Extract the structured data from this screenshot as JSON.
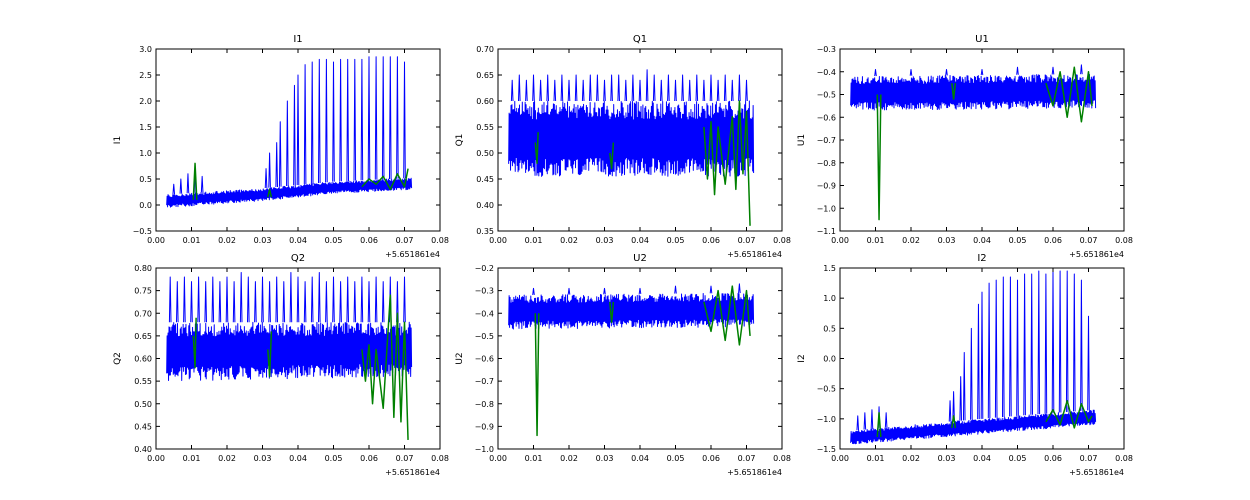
{
  "chart_data": [
    {
      "type": "line",
      "title": "I1",
      "ylabel": "I1",
      "xlim": [
        0.0,
        0.08
      ],
      "ylim": [
        -0.5,
        3.0
      ],
      "x_offset_label": "+5.651861e4",
      "xticks": [
        "0.00",
        "0.01",
        "0.02",
        "0.03",
        "0.04",
        "0.05",
        "0.06",
        "0.07",
        "0.08"
      ],
      "yticks": [
        "−0.5",
        "0.0",
        "0.5",
        "1.0",
        "1.5",
        "2.0",
        "2.5",
        "3.0"
      ],
      "blue_band": {
        "x": [
          0.003,
          0.03,
          0.05,
          0.072
        ],
        "low": [
          -0.05,
          0.08,
          0.22,
          0.3
        ],
        "high": [
          0.2,
          0.32,
          0.45,
          0.52
        ]
      },
      "blue_spikes": [
        {
          "x": 0.005,
          "y": 0.4
        },
        {
          "x": 0.007,
          "y": 0.5
        },
        {
          "x": 0.009,
          "y": 0.6
        },
        {
          "x": 0.011,
          "y": 0.7
        },
        {
          "x": 0.013,
          "y": 0.55
        },
        {
          "x": 0.031,
          "y": 0.7
        },
        {
          "x": 0.032,
          "y": 1.0
        },
        {
          "x": 0.034,
          "y": 1.2
        },
        {
          "x": 0.035,
          "y": 1.6
        },
        {
          "x": 0.037,
          "y": 2.0
        },
        {
          "x": 0.039,
          "y": 2.3
        },
        {
          "x": 0.04,
          "y": 2.5
        },
        {
          "x": 0.042,
          "y": 2.7
        },
        {
          "x": 0.044,
          "y": 2.75
        },
        {
          "x": 0.046,
          "y": 2.8
        },
        {
          "x": 0.048,
          "y": 2.8
        },
        {
          "x": 0.05,
          "y": 2.75
        },
        {
          "x": 0.052,
          "y": 2.8
        },
        {
          "x": 0.054,
          "y": 2.8
        },
        {
          "x": 0.056,
          "y": 2.8
        },
        {
          "x": 0.058,
          "y": 2.8
        },
        {
          "x": 0.06,
          "y": 2.85
        },
        {
          "x": 0.062,
          "y": 2.85
        },
        {
          "x": 0.064,
          "y": 2.85
        },
        {
          "x": 0.066,
          "y": 2.85
        },
        {
          "x": 0.068,
          "y": 2.85
        },
        {
          "x": 0.07,
          "y": 2.75
        }
      ],
      "green_line": [
        {
          "x": 0.0105,
          "y": 0.1
        },
        {
          "x": 0.011,
          "y": 0.8
        },
        {
          "x": 0.0115,
          "y": 0.1
        },
        {
          "x": 0.0315,
          "y": 0.15
        },
        {
          "x": 0.032,
          "y": 0.3
        },
        {
          "x": 0.0325,
          "y": 0.15
        },
        {
          "x": 0.058,
          "y": 0.35
        },
        {
          "x": 0.06,
          "y": 0.5
        },
        {
          "x": 0.062,
          "y": 0.4
        },
        {
          "x": 0.064,
          "y": 0.55
        },
        {
          "x": 0.066,
          "y": 0.3
        },
        {
          "x": 0.068,
          "y": 0.6
        },
        {
          "x": 0.07,
          "y": 0.35
        },
        {
          "x": 0.071,
          "y": 0.7
        }
      ]
    },
    {
      "type": "line",
      "title": "Q1",
      "ylabel": "Q1",
      "xlim": [
        0.0,
        0.08
      ],
      "ylim": [
        0.35,
        0.7
      ],
      "x_offset_label": "+5.651861e4",
      "xticks": [
        "0.00",
        "0.01",
        "0.02",
        "0.03",
        "0.04",
        "0.05",
        "0.06",
        "0.07",
        "0.08"
      ],
      "yticks": [
        "0.35",
        "0.40",
        "0.45",
        "0.50",
        "0.55",
        "0.60",
        "0.65",
        "0.70"
      ],
      "blue_band": {
        "x": [
          0.003,
          0.072
        ],
        "low": [
          0.455,
          0.455
        ],
        "high": [
          0.6,
          0.6
        ]
      },
      "blue_spikes": [
        {
          "x": 0.004,
          "y": 0.64
        },
        {
          "x": 0.006,
          "y": 0.65
        },
        {
          "x": 0.008,
          "y": 0.64
        },
        {
          "x": 0.01,
          "y": 0.65
        },
        {
          "x": 0.012,
          "y": 0.64
        },
        {
          "x": 0.014,
          "y": 0.65
        },
        {
          "x": 0.016,
          "y": 0.64
        },
        {
          "x": 0.018,
          "y": 0.65
        },
        {
          "x": 0.02,
          "y": 0.64
        },
        {
          "x": 0.022,
          "y": 0.65
        },
        {
          "x": 0.024,
          "y": 0.64
        },
        {
          "x": 0.026,
          "y": 0.65
        },
        {
          "x": 0.028,
          "y": 0.65
        },
        {
          "x": 0.03,
          "y": 0.64
        },
        {
          "x": 0.032,
          "y": 0.65
        },
        {
          "x": 0.034,
          "y": 0.65
        },
        {
          "x": 0.036,
          "y": 0.64
        },
        {
          "x": 0.038,
          "y": 0.65
        },
        {
          "x": 0.04,
          "y": 0.64
        },
        {
          "x": 0.042,
          "y": 0.66
        },
        {
          "x": 0.044,
          "y": 0.65
        },
        {
          "x": 0.046,
          "y": 0.64
        },
        {
          "x": 0.048,
          "y": 0.65
        },
        {
          "x": 0.05,
          "y": 0.64
        },
        {
          "x": 0.052,
          "y": 0.65
        },
        {
          "x": 0.054,
          "y": 0.64
        },
        {
          "x": 0.056,
          "y": 0.65
        },
        {
          "x": 0.058,
          "y": 0.64
        },
        {
          "x": 0.06,
          "y": 0.65
        },
        {
          "x": 0.062,
          "y": 0.64
        },
        {
          "x": 0.064,
          "y": 0.65
        },
        {
          "x": 0.066,
          "y": 0.64
        },
        {
          "x": 0.068,
          "y": 0.65
        },
        {
          "x": 0.07,
          "y": 0.64
        }
      ],
      "green_line": [
        {
          "x": 0.0105,
          "y": 0.52
        },
        {
          "x": 0.011,
          "y": 0.48
        },
        {
          "x": 0.0113,
          "y": 0.54
        },
        {
          "x": 0.0315,
          "y": 0.5
        },
        {
          "x": 0.032,
          "y": 0.47
        },
        {
          "x": 0.0325,
          "y": 0.52
        },
        {
          "x": 0.058,
          "y": 0.55
        },
        {
          "x": 0.059,
          "y": 0.45
        },
        {
          "x": 0.06,
          "y": 0.56
        },
        {
          "x": 0.061,
          "y": 0.42
        },
        {
          "x": 0.062,
          "y": 0.55
        },
        {
          "x": 0.064,
          "y": 0.44
        },
        {
          "x": 0.066,
          "y": 0.57
        },
        {
          "x": 0.067,
          "y": 0.43
        },
        {
          "x": 0.068,
          "y": 0.6
        },
        {
          "x": 0.069,
          "y": 0.46
        },
        {
          "x": 0.07,
          "y": 0.58
        },
        {
          "x": 0.071,
          "y": 0.36
        }
      ]
    },
    {
      "type": "line",
      "title": "U1",
      "ylabel": "U1",
      "xlim": [
        0.0,
        0.08
      ],
      "ylim": [
        -1.1,
        -0.3
      ],
      "x_offset_label": "+5.651861e4",
      "xticks": [
        "0.00",
        "0.01",
        "0.02",
        "0.03",
        "0.04",
        "0.05",
        "0.06",
        "0.07",
        "0.08"
      ],
      "yticks": [
        "−1.1",
        "−1.0",
        "−0.9",
        "−0.8",
        "−0.7",
        "−0.6",
        "−0.5",
        "−0.4",
        "−0.3"
      ],
      "blue_band": {
        "x": [
          0.003,
          0.072
        ],
        "low": [
          -0.57,
          -0.56
        ],
        "high": [
          -0.42,
          -0.41
        ]
      },
      "blue_spikes": [
        {
          "x": 0.01,
          "y": -0.39
        },
        {
          "x": 0.02,
          "y": -0.39
        },
        {
          "x": 0.03,
          "y": -0.39
        },
        {
          "x": 0.04,
          "y": -0.39
        },
        {
          "x": 0.05,
          "y": -0.38
        },
        {
          "x": 0.06,
          "y": -0.38
        },
        {
          "x": 0.068,
          "y": -0.37
        }
      ],
      "green_line": [
        {
          "x": 0.0105,
          "y": -0.5
        },
        {
          "x": 0.011,
          "y": -1.05
        },
        {
          "x": 0.0115,
          "y": -0.5
        },
        {
          "x": 0.0315,
          "y": -0.45
        },
        {
          "x": 0.032,
          "y": -0.52
        },
        {
          "x": 0.0325,
          "y": -0.45
        },
        {
          "x": 0.058,
          "y": -0.45
        },
        {
          "x": 0.06,
          "y": -0.55
        },
        {
          "x": 0.062,
          "y": -0.4
        },
        {
          "x": 0.064,
          "y": -0.6
        },
        {
          "x": 0.066,
          "y": -0.38
        },
        {
          "x": 0.068,
          "y": -0.62
        },
        {
          "x": 0.07,
          "y": -0.4
        },
        {
          "x": 0.071,
          "y": -0.55
        }
      ]
    },
    {
      "type": "line",
      "title": "Q2",
      "ylabel": "Q2",
      "xlim": [
        0.0,
        0.08
      ],
      "ylim": [
        0.4,
        0.8
      ],
      "x_offset_label": "+5.651861e4",
      "xticks": [
        "0.00",
        "0.01",
        "0.02",
        "0.03",
        "0.04",
        "0.05",
        "0.06",
        "0.07",
        "0.08"
      ],
      "yticks": [
        "0.40",
        "0.45",
        "0.50",
        "0.55",
        "0.60",
        "0.65",
        "0.70",
        "0.75",
        "0.80"
      ],
      "blue_band": {
        "x": [
          0.003,
          0.072
        ],
        "low": [
          0.55,
          0.56
        ],
        "high": [
          0.68,
          0.68
        ]
      },
      "blue_spikes": [
        {
          "x": 0.004,
          "y": 0.78
        },
        {
          "x": 0.006,
          "y": 0.77
        },
        {
          "x": 0.008,
          "y": 0.78
        },
        {
          "x": 0.01,
          "y": 0.77
        },
        {
          "x": 0.012,
          "y": 0.78
        },
        {
          "x": 0.014,
          "y": 0.77
        },
        {
          "x": 0.016,
          "y": 0.78
        },
        {
          "x": 0.018,
          "y": 0.77
        },
        {
          "x": 0.02,
          "y": 0.78
        },
        {
          "x": 0.022,
          "y": 0.77
        },
        {
          "x": 0.024,
          "y": 0.79
        },
        {
          "x": 0.026,
          "y": 0.78
        },
        {
          "x": 0.028,
          "y": 0.77
        },
        {
          "x": 0.03,
          "y": 0.78
        },
        {
          "x": 0.032,
          "y": 0.77
        },
        {
          "x": 0.034,
          "y": 0.78
        },
        {
          "x": 0.036,
          "y": 0.77
        },
        {
          "x": 0.038,
          "y": 0.79
        },
        {
          "x": 0.04,
          "y": 0.78
        },
        {
          "x": 0.042,
          "y": 0.77
        },
        {
          "x": 0.044,
          "y": 0.78
        },
        {
          "x": 0.046,
          "y": 0.79
        },
        {
          "x": 0.048,
          "y": 0.77
        },
        {
          "x": 0.05,
          "y": 0.78
        },
        {
          "x": 0.052,
          "y": 0.77
        },
        {
          "x": 0.054,
          "y": 0.78
        },
        {
          "x": 0.056,
          "y": 0.77
        },
        {
          "x": 0.058,
          "y": 0.78
        },
        {
          "x": 0.06,
          "y": 0.77
        },
        {
          "x": 0.062,
          "y": 0.78
        },
        {
          "x": 0.064,
          "y": 0.77
        },
        {
          "x": 0.066,
          "y": 0.78
        },
        {
          "x": 0.068,
          "y": 0.77
        },
        {
          "x": 0.07,
          "y": 0.78
        }
      ],
      "green_line": [
        {
          "x": 0.0105,
          "y": 0.65
        },
        {
          "x": 0.011,
          "y": 0.58
        },
        {
          "x": 0.0113,
          "y": 0.69
        },
        {
          "x": 0.0315,
          "y": 0.62
        },
        {
          "x": 0.032,
          "y": 0.56
        },
        {
          "x": 0.0325,
          "y": 0.66
        },
        {
          "x": 0.058,
          "y": 0.62
        },
        {
          "x": 0.059,
          "y": 0.55
        },
        {
          "x": 0.06,
          "y": 0.63
        },
        {
          "x": 0.061,
          "y": 0.5
        },
        {
          "x": 0.062,
          "y": 0.62
        },
        {
          "x": 0.064,
          "y": 0.49
        },
        {
          "x": 0.066,
          "y": 0.74
        },
        {
          "x": 0.067,
          "y": 0.47
        },
        {
          "x": 0.068,
          "y": 0.7
        },
        {
          "x": 0.069,
          "y": 0.46
        },
        {
          "x": 0.07,
          "y": 0.68
        },
        {
          "x": 0.071,
          "y": 0.42
        }
      ]
    },
    {
      "type": "line",
      "title": "U2",
      "ylabel": "U2",
      "xlim": [
        0.0,
        0.08
      ],
      "ylim": [
        -1.0,
        -0.2
      ],
      "x_offset_label": "+5.651861e4",
      "xticks": [
        "0.00",
        "0.01",
        "0.02",
        "0.03",
        "0.04",
        "0.05",
        "0.06",
        "0.07",
        "0.08"
      ],
      "yticks": [
        "−1.0",
        "−0.9",
        "−0.8",
        "−0.7",
        "−0.6",
        "−0.5",
        "−0.4",
        "−0.3",
        "−0.2"
      ],
      "blue_band": {
        "x": [
          0.003,
          0.072
        ],
        "low": [
          -0.47,
          -0.46
        ],
        "high": [
          -0.32,
          -0.31
        ]
      },
      "blue_spikes": [
        {
          "x": 0.01,
          "y": -0.29
        },
        {
          "x": 0.02,
          "y": -0.29
        },
        {
          "x": 0.03,
          "y": -0.29
        },
        {
          "x": 0.04,
          "y": -0.29
        },
        {
          "x": 0.05,
          "y": -0.28
        },
        {
          "x": 0.06,
          "y": -0.28
        },
        {
          "x": 0.068,
          "y": -0.27
        }
      ],
      "green_line": [
        {
          "x": 0.0105,
          "y": -0.4
        },
        {
          "x": 0.011,
          "y": -0.94
        },
        {
          "x": 0.0115,
          "y": -0.4
        },
        {
          "x": 0.0315,
          "y": -0.35
        },
        {
          "x": 0.032,
          "y": -0.44
        },
        {
          "x": 0.0325,
          "y": -0.35
        },
        {
          "x": 0.058,
          "y": -0.35
        },
        {
          "x": 0.06,
          "y": -0.48
        },
        {
          "x": 0.062,
          "y": -0.3
        },
        {
          "x": 0.064,
          "y": -0.52
        },
        {
          "x": 0.066,
          "y": -0.28
        },
        {
          "x": 0.068,
          "y": -0.54
        },
        {
          "x": 0.07,
          "y": -0.3
        },
        {
          "x": 0.071,
          "y": -0.5
        }
      ]
    },
    {
      "type": "line",
      "title": "I2",
      "ylabel": "I2",
      "xlim": [
        0.0,
        0.08
      ],
      "ylim": [
        -1.5,
        1.5
      ],
      "x_offset_label": "+5.651861e4",
      "xticks": [
        "0.00",
        "0.01",
        "0.02",
        "0.03",
        "0.04",
        "0.05",
        "0.06",
        "0.07",
        "0.08"
      ],
      "yticks": [
        "−1.5",
        "−1.0",
        "−0.5",
        "0.0",
        "0.5",
        "1.0",
        "1.5"
      ],
      "blue_band": {
        "x": [
          0.003,
          0.03,
          0.05,
          0.072
        ],
        "low": [
          -1.42,
          -1.3,
          -1.2,
          -1.1
        ],
        "high": [
          -1.2,
          -1.05,
          -0.95,
          -0.85
        ]
      },
      "blue_spikes": [
        {
          "x": 0.005,
          "y": -0.95
        },
        {
          "x": 0.007,
          "y": -0.9
        },
        {
          "x": 0.009,
          "y": -0.85
        },
        {
          "x": 0.011,
          "y": -0.8
        },
        {
          "x": 0.013,
          "y": -0.9
        },
        {
          "x": 0.031,
          "y": -0.7
        },
        {
          "x": 0.032,
          "y": -0.55
        },
        {
          "x": 0.034,
          "y": -0.3
        },
        {
          "x": 0.035,
          "y": 0.1
        },
        {
          "x": 0.037,
          "y": 0.5
        },
        {
          "x": 0.039,
          "y": 0.9
        },
        {
          "x": 0.04,
          "y": 1.1
        },
        {
          "x": 0.042,
          "y": 1.25
        },
        {
          "x": 0.044,
          "y": 1.3
        },
        {
          "x": 0.046,
          "y": 1.35
        },
        {
          "x": 0.048,
          "y": 1.35
        },
        {
          "x": 0.05,
          "y": 1.3
        },
        {
          "x": 0.052,
          "y": 1.4
        },
        {
          "x": 0.054,
          "y": 1.4
        },
        {
          "x": 0.056,
          "y": 1.45
        },
        {
          "x": 0.058,
          "y": 1.4
        },
        {
          "x": 0.06,
          "y": 1.45
        },
        {
          "x": 0.062,
          "y": 1.45
        },
        {
          "x": 0.064,
          "y": 1.45
        },
        {
          "x": 0.066,
          "y": 1.4
        },
        {
          "x": 0.068,
          "y": 1.3
        },
        {
          "x": 0.07,
          "y": 0.7
        }
      ],
      "green_line": [
        {
          "x": 0.0105,
          "y": -1.3
        },
        {
          "x": 0.011,
          "y": -0.9
        },
        {
          "x": 0.0115,
          "y": -1.3
        },
        {
          "x": 0.0315,
          "y": -1.15
        },
        {
          "x": 0.032,
          "y": -0.95
        },
        {
          "x": 0.0325,
          "y": -1.15
        },
        {
          "x": 0.058,
          "y": -1.05
        },
        {
          "x": 0.06,
          "y": -0.85
        },
        {
          "x": 0.062,
          "y": -1.1
        },
        {
          "x": 0.064,
          "y": -0.7
        },
        {
          "x": 0.066,
          "y": -1.15
        },
        {
          "x": 0.068,
          "y": -0.75
        },
        {
          "x": 0.07,
          "y": -1.05
        },
        {
          "x": 0.071,
          "y": -0.95
        }
      ]
    }
  ],
  "colors": {
    "blue": "#0000ff",
    "green": "#008000",
    "frame": "#000000",
    "background": "#ffffff"
  }
}
